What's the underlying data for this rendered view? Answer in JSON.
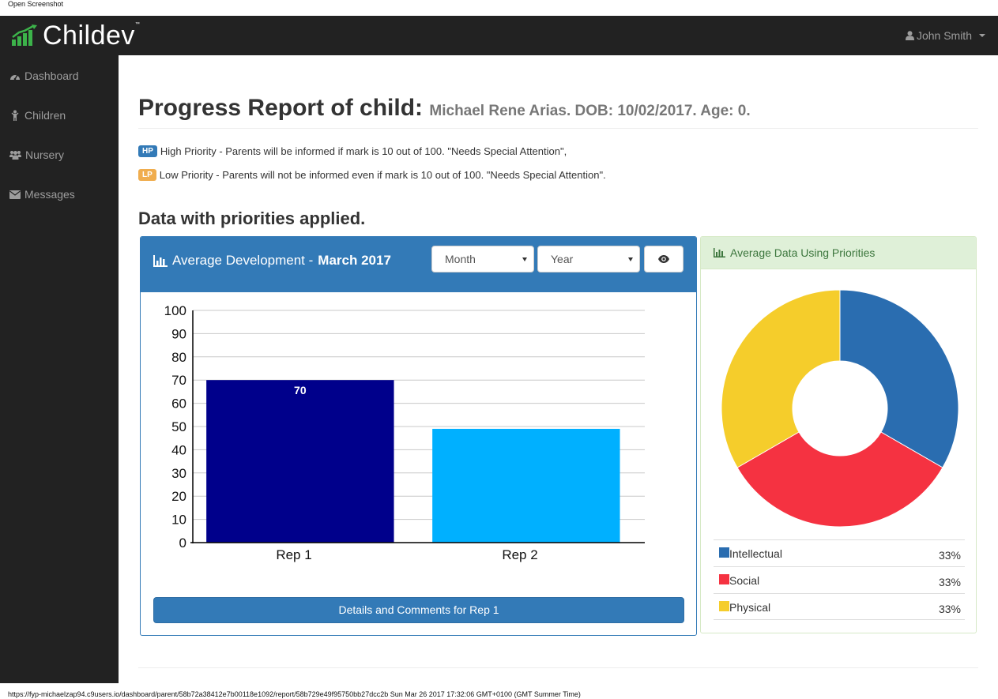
{
  "caption": "Open Screenshot",
  "brand": {
    "name": "Childev",
    "tm": "™"
  },
  "user": {
    "name": "John Smith"
  },
  "sidebar": {
    "items": [
      {
        "label": "Dashboard",
        "icon": "dashboard-icon"
      },
      {
        "label": "Children",
        "icon": "child-icon"
      },
      {
        "label": "Nursery",
        "icon": "users-icon"
      },
      {
        "label": "Messages",
        "icon": "envelope-icon"
      }
    ]
  },
  "report": {
    "title": "Progress Report of child:",
    "child_name": "Michael Rene Arias",
    "dob_age": ". DOB: 10/02/2017. Age: 0."
  },
  "priorities": [
    {
      "badge": "HP",
      "color": "#337ab7",
      "text": "High Priority - Parents will be informed if mark is 10 out of 100. \"Needs Special Attention\","
    },
    {
      "badge": "LP",
      "color": "#f0ad4e",
      "text": "Low Priority - Parents will not be informed even if mark is 10 out of 100. \"Needs Special Attention\"."
    }
  ],
  "section_title": "Data with priorities applied.",
  "dev_panel": {
    "title": "Average Development - ",
    "period": "March 2017",
    "month_select": "Month",
    "year_select": "Year",
    "button": "Details and Comments for Rep 1"
  },
  "pie_panel": {
    "title": "Average Data Using Priorities",
    "legend": [
      {
        "label": "Intellectual",
        "value": "33%",
        "color": "#2a6db0"
      },
      {
        "label": "Social",
        "value": "33%",
        "color": "#f53241"
      },
      {
        "label": "Physical",
        "value": "33%",
        "color": "#f5cd2b"
      }
    ]
  },
  "chart_data": [
    {
      "type": "bar",
      "categories": [
        "Rep 1",
        "Rep 2"
      ],
      "values": [
        70,
        49
      ],
      "colors": [
        "#00008b",
        "#00b0ff"
      ],
      "data_labels": [
        "70",
        ""
      ],
      "ylim": [
        0,
        100
      ],
      "yticks": [
        0,
        10,
        20,
        30,
        40,
        50,
        60,
        70,
        80,
        90,
        100
      ],
      "grid": true
    },
    {
      "type": "pie",
      "labels": [
        "Intellectual",
        "Social",
        "Physical"
      ],
      "values": [
        33.33,
        33.33,
        33.33
      ],
      "colors": [
        "#2a6db0",
        "#f53241",
        "#f5cd2b"
      ],
      "donut": true
    }
  ],
  "footer": "https://fyp-michaelzap94.c9users.io/dashboard/parent/58b72a38412e7b00118e1092/report/58b729e49f95750bb27dcc2b Sun Mar 26 2017 17:32:06 GMT+0100 (GMT Summer Time)"
}
